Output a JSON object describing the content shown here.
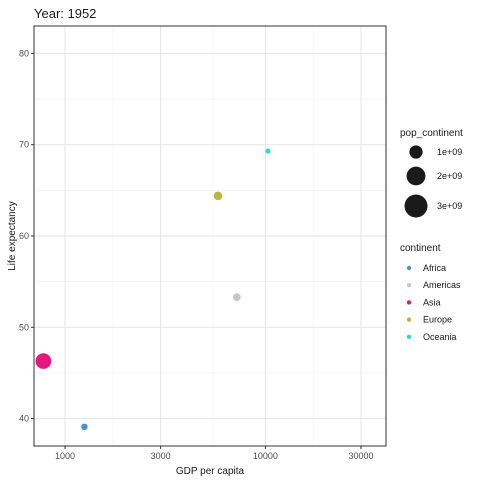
{
  "chart_data": {
    "type": "scatter",
    "title": "Year: 1952",
    "xlabel": "GDP per capita",
    "ylabel": "Life expectancy",
    "x_scale": "log",
    "xlim": [
      700,
      40000
    ],
    "ylim": [
      37,
      83
    ],
    "x_ticks": [
      1000,
      3000,
      10000,
      30000
    ],
    "x_tick_labels": [
      "1000",
      "3000",
      "10000",
      "30000"
    ],
    "y_ticks": [
      40,
      50,
      60,
      70,
      80
    ],
    "y_tick_labels": [
      "40",
      "50",
      "60",
      "70",
      "80"
    ],
    "grid": true,
    "legend_position": "right",
    "size_legend": {
      "title": "pop_continent",
      "values": [
        1000000000,
        2000000000,
        3000000000
      ],
      "labels": [
        "1e+09",
        "2e+09",
        "3e+09"
      ]
    },
    "color_legend": {
      "title": "continent",
      "labels": [
        "Africa",
        "Americas",
        "Asia",
        "Europe",
        "Oceania"
      ],
      "colors": [
        "#4a8fd9",
        "#c8c8c8",
        "#e8177f",
        "#b5b83a",
        "#2ed6d6"
      ]
    },
    "points": [
      {
        "continent": "Africa",
        "x": 1250,
        "y": 39.1,
        "pop": 237000000,
        "color": "#4a8fd9"
      },
      {
        "continent": "Americas",
        "x": 7200,
        "y": 53.3,
        "pop": 345000000,
        "color": "#c8c8c8"
      },
      {
        "continent": "Asia",
        "x": 780,
        "y": 46.3,
        "pop": 1395000000,
        "color": "#e8177f"
      },
      {
        "continent": "Europe",
        "x": 5800,
        "y": 64.4,
        "pop": 418000000,
        "color": "#b5b83a"
      },
      {
        "continent": "Oceania",
        "x": 10300,
        "y": 69.3,
        "pop": 10700000,
        "color": "#2ed6d6"
      }
    ]
  }
}
